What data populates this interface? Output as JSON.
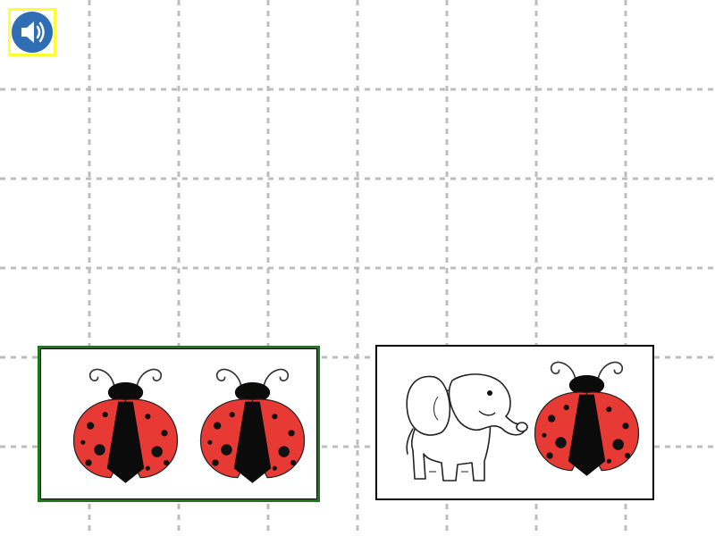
{
  "speaker": {
    "icon": "speaker-icon"
  },
  "cards": [
    {
      "id": "left",
      "icons": [
        "ladybug-icon",
        "ladybug-icon"
      ],
      "selected": true,
      "highlight_color": "#1a7a1a"
    },
    {
      "id": "right",
      "icons": [
        "elephant-icon",
        "ladybug-icon"
      ],
      "selected": false
    }
  ],
  "colors": {
    "grid_line": "#bdbdbd",
    "speaker_fill": "#2f6db5",
    "speaker_highlight": "#ffff33",
    "ladybug_red": "#e83a35"
  }
}
